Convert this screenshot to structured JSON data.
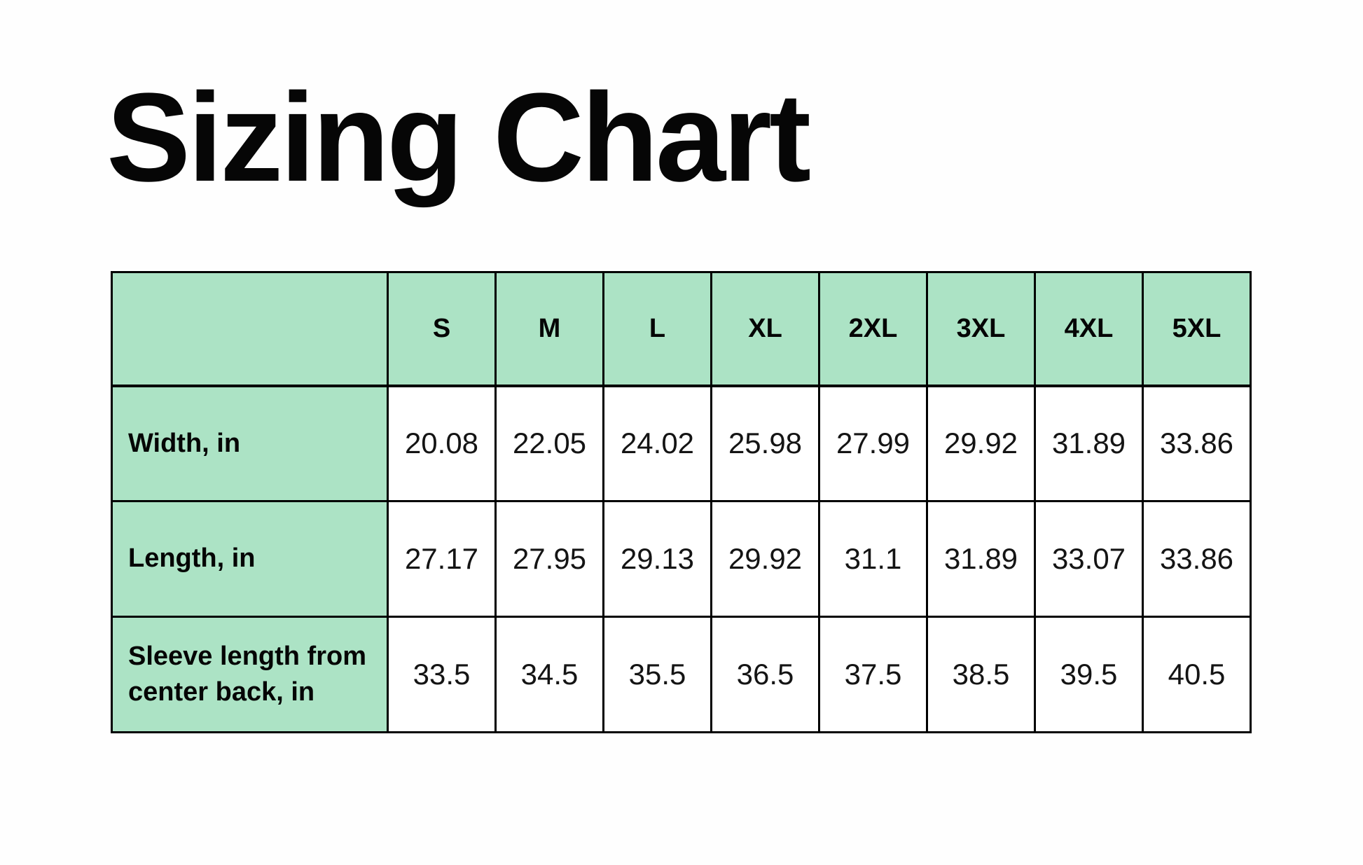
{
  "page": {
    "title": "Sizing Chart",
    "background_color": "#fefefe",
    "header_green": "#ace3c5",
    "border_color": "#000000"
  },
  "table": {
    "corner_label": "",
    "columns": [
      "S",
      "M",
      "L",
      "XL",
      "2XL",
      "3XL",
      "4XL",
      "5XL"
    ],
    "rows": [
      {
        "label": "Width, in",
        "values": [
          "20.08",
          "22.05",
          "24.02",
          "25.98",
          "27.99",
          "29.92",
          "31.89",
          "33.86"
        ]
      },
      {
        "label": "Length, in",
        "values": [
          "27.17",
          "27.95",
          "29.13",
          "29.92",
          "31.1",
          "31.89",
          "33.07",
          "33.86"
        ]
      },
      {
        "label": "Sleeve length from center back, in",
        "values": [
          "33.5",
          "34.5",
          "35.5",
          "36.5",
          "37.5",
          "38.5",
          "39.5",
          "40.5"
        ]
      }
    ]
  },
  "chart_data": {
    "type": "table",
    "title": "Sizing Chart",
    "categories": [
      "S",
      "M",
      "L",
      "XL",
      "2XL",
      "3XL",
      "4XL",
      "5XL"
    ],
    "series": [
      {
        "name": "Width, in",
        "values": [
          20.08,
          22.05,
          24.02,
          25.98,
          27.99,
          29.92,
          31.89,
          33.86
        ]
      },
      {
        "name": "Length, in",
        "values": [
          27.17,
          27.95,
          29.13,
          29.92,
          31.1,
          31.89,
          33.07,
          33.86
        ]
      },
      {
        "name": "Sleeve length from center back, in",
        "values": [
          33.5,
          34.5,
          35.5,
          36.5,
          37.5,
          38.5,
          39.5,
          40.5
        ]
      }
    ],
    "layout": {
      "header_fill": "#ace3c5",
      "label_column_fill": "#ace3c5",
      "grid": true
    }
  }
}
